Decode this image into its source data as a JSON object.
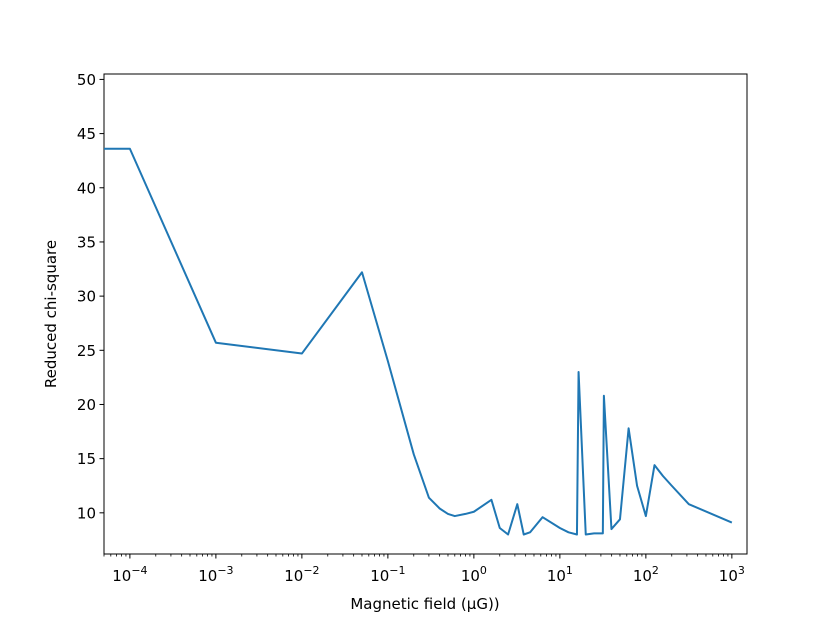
{
  "chart_data": {
    "type": "line",
    "title": "",
    "xlabel": "Magnetic field (μG))",
    "ylabel": "Reduced chi-square",
    "x_scale": "log",
    "xlim": [
      5e-05,
      1500
    ],
    "ylim": [
      6.2,
      50.5
    ],
    "grid": false,
    "line_color": "#1f77b4",
    "x_ticks": [
      {
        "value": 0.0001,
        "base": "10",
        "exp": "−4"
      },
      {
        "value": 0.001,
        "base": "10",
        "exp": "−3"
      },
      {
        "value": 0.01,
        "base": "10",
        "exp": "−2"
      },
      {
        "value": 0.1,
        "base": "10",
        "exp": "−1"
      },
      {
        "value": 1,
        "base": "10",
        "exp": "0"
      },
      {
        "value": 10,
        "base": "10",
        "exp": "1"
      },
      {
        "value": 100,
        "base": "10",
        "exp": "2"
      },
      {
        "value": 1000,
        "base": "10",
        "exp": "3"
      }
    ],
    "y_ticks": [
      10,
      15,
      20,
      25,
      30,
      35,
      40,
      45,
      50
    ],
    "series": [
      {
        "x": [
          5e-05,
          0.0001,
          0.001,
          0.01,
          0.05,
          0.1,
          0.2,
          0.3,
          0.4,
          0.5,
          0.6,
          0.8,
          1.0,
          1.6,
          2.0,
          2.5,
          3.2,
          3.8,
          4.5,
          6.3,
          10,
          12.6,
          15.8,
          16.5,
          20,
          25,
          31.6,
          32.5,
          39.8,
          50,
          63,
          79,
          100,
          126,
          158,
          200,
          316,
          1000
        ],
        "y": [
          43.6,
          43.6,
          25.7,
          24.7,
          32.2,
          24.0,
          15.4,
          11.4,
          10.4,
          9.9,
          9.7,
          9.9,
          10.1,
          11.2,
          8.6,
          8.0,
          10.8,
          8.0,
          8.2,
          9.6,
          8.6,
          8.2,
          8.0,
          23.0,
          8.0,
          8.1,
          8.1,
          20.8,
          8.5,
          9.4,
          17.8,
          12.5,
          9.7,
          14.4,
          13.4,
          12.5,
          10.8,
          9.1
        ]
      }
    ]
  }
}
